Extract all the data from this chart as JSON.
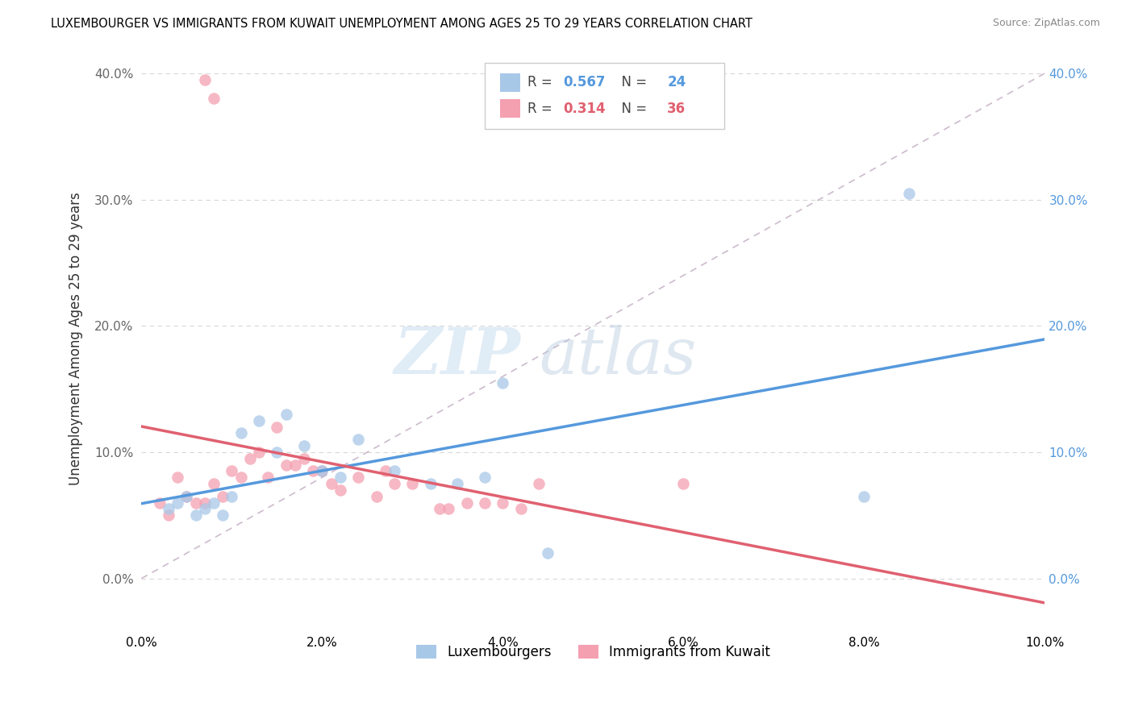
{
  "title": "LUXEMBOURGER VS IMMIGRANTS FROM KUWAIT UNEMPLOYMENT AMONG AGES 25 TO 29 YEARS CORRELATION CHART",
  "source": "Source: ZipAtlas.com",
  "ylabel": "Unemployment Among Ages 25 to 29 years",
  "xlim": [
    0.0,
    0.1
  ],
  "ylim": [
    -0.04,
    0.42
  ],
  "xticks": [
    0.0,
    0.02,
    0.04,
    0.06,
    0.08,
    0.1
  ],
  "yticks": [
    0.0,
    0.1,
    0.2,
    0.3,
    0.4
  ],
  "legend_R_blue": "0.567",
  "legend_N_blue": "24",
  "legend_R_pink": "0.314",
  "legend_N_pink": "36",
  "blue_color": "#a8c8e8",
  "pink_color": "#f4a0b0",
  "blue_line_color": "#5599dd",
  "pink_line_color": "#e06070",
  "diagonal_color": "#ccbbcc",
  "watermark_zip": "ZIP",
  "watermark_atlas": "atlas",
  "grid_color": "#d8d8d8",
  "blue_scatter_x": [
    0.003,
    0.004,
    0.005,
    0.006,
    0.007,
    0.008,
    0.009,
    0.01,
    0.011,
    0.013,
    0.015,
    0.016,
    0.018,
    0.02,
    0.022,
    0.024,
    0.028,
    0.032,
    0.035,
    0.038,
    0.04,
    0.045,
    0.08,
    0.085
  ],
  "blue_scatter_y": [
    0.055,
    0.06,
    0.065,
    0.05,
    0.055,
    0.06,
    0.05,
    0.065,
    0.115,
    0.125,
    0.1,
    0.13,
    0.105,
    0.085,
    0.08,
    0.11,
    0.085,
    0.075,
    0.075,
    0.08,
    0.155,
    0.02,
    0.065,
    0.305
  ],
  "pink_scatter_x": [
    0.002,
    0.003,
    0.004,
    0.005,
    0.006,
    0.007,
    0.008,
    0.009,
    0.01,
    0.011,
    0.012,
    0.013,
    0.014,
    0.015,
    0.016,
    0.017,
    0.018,
    0.019,
    0.02,
    0.021,
    0.022,
    0.024,
    0.026,
    0.027,
    0.028,
    0.03,
    0.033,
    0.034,
    0.036,
    0.038,
    0.04,
    0.042,
    0.044,
    0.06,
    0.007,
    0.008
  ],
  "pink_scatter_y": [
    0.06,
    0.05,
    0.08,
    0.065,
    0.06,
    0.06,
    0.075,
    0.065,
    0.085,
    0.08,
    0.095,
    0.1,
    0.08,
    0.12,
    0.09,
    0.09,
    0.095,
    0.085,
    0.085,
    0.075,
    0.07,
    0.08,
    0.065,
    0.085,
    0.075,
    0.075,
    0.055,
    0.055,
    0.06,
    0.06,
    0.06,
    0.055,
    0.075,
    0.075,
    0.395,
    0.38
  ]
}
